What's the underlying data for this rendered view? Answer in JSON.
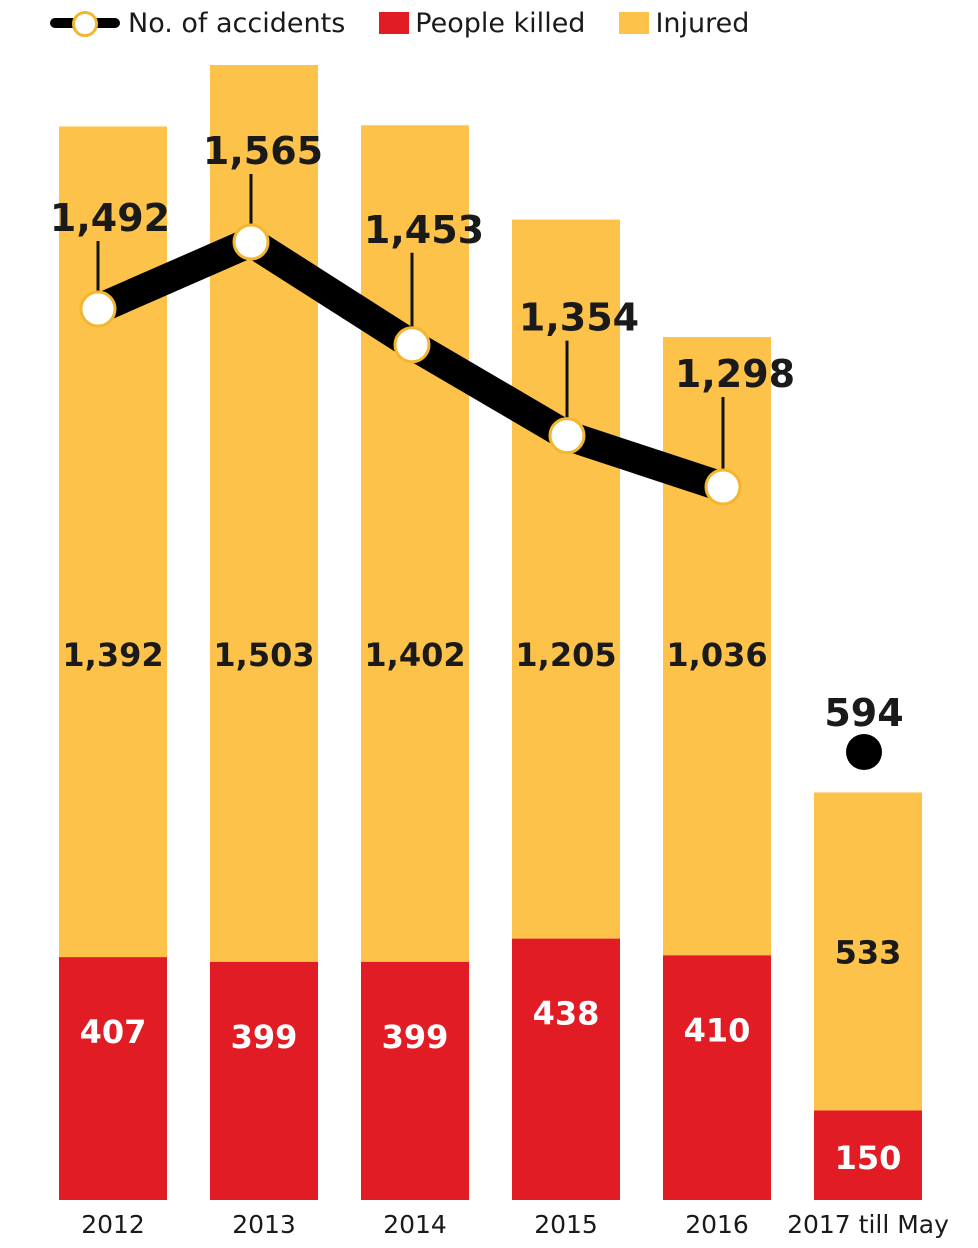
{
  "legend": {
    "accidents": "No. of accidents",
    "killed": "People killed",
    "injured": "Injured"
  },
  "colors": {
    "injured": "#FCC24A",
    "killed": "#E21C24",
    "line": "#000000",
    "marker_ring": "#F2B630"
  },
  "chart_data": {
    "type": "bar",
    "stacked": true,
    "categories": [
      "2012",
      "2013",
      "2014",
      "2015",
      "2016",
      "2017 till May"
    ],
    "series": [
      {
        "name": "People killed",
        "values": [
          407,
          399,
          399,
          438,
          410,
          150
        ]
      },
      {
        "name": "Injured",
        "values": [
          1392,
          1503,
          1402,
          1205,
          1036,
          533
        ]
      }
    ],
    "line_series": {
      "name": "No. of accidents",
      "values": [
        1492,
        1565,
        1453,
        1354,
        1298,
        594
      ],
      "labels": [
        "1,492",
        "1,565",
        "1,453",
        "1,354",
        "1,298",
        "594"
      ]
    },
    "value_labels": {
      "killed": [
        "407",
        "399",
        "399",
        "438",
        "410",
        "150"
      ],
      "injured": [
        "1,392",
        "1,503",
        "1,402",
        "1,205",
        "1,036",
        "533"
      ]
    },
    "legend_position": "top-left",
    "grid": false
  }
}
